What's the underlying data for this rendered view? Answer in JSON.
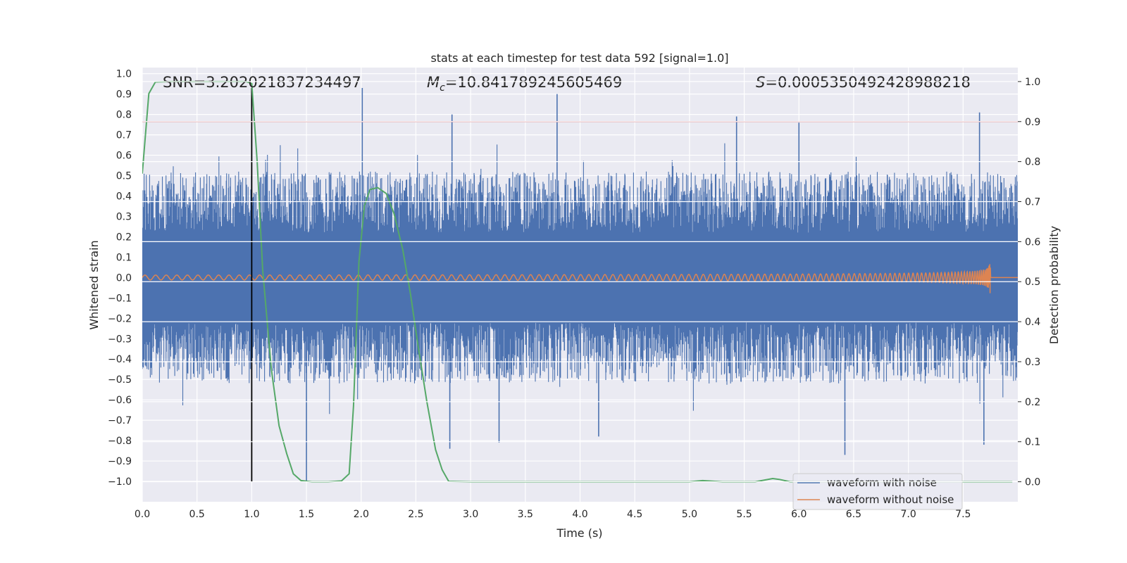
{
  "chart_data": {
    "type": "line",
    "title": "stats at each timestep for test data 592 [signal=1.0]",
    "xlabel": "Time (s)",
    "ylabel": "Whitened strain",
    "y2label": "Detection probability",
    "xlim": [
      0.0,
      8.0
    ],
    "ylim": [
      -1.1,
      1.03
    ],
    "y2lim": [
      -0.05,
      1.035
    ],
    "xticks": [
      0.0,
      0.5,
      1.0,
      1.5,
      2.0,
      2.5,
      3.0,
      3.5,
      4.0,
      4.5,
      5.0,
      5.5,
      6.0,
      6.5,
      7.0,
      7.5
    ],
    "xtick_labels": [
      "0.0",
      "0.5",
      "1.0",
      "1.5",
      "2.0",
      "2.5",
      "3.0",
      "3.5",
      "4.0",
      "4.5",
      "5.0",
      "5.5",
      "6.0",
      "6.5",
      "7.0",
      "7.5"
    ],
    "yticks": [
      1.0,
      0.9,
      0.8,
      0.7,
      0.6,
      0.5,
      0.4,
      0.3,
      0.2,
      0.1,
      0.0,
      -0.1,
      -0.2,
      -0.3,
      -0.4,
      -0.5,
      -0.6,
      -0.7,
      -0.8,
      -0.9,
      -1.0
    ],
    "ytick_labels": [
      "1.0",
      "0.9",
      "0.8",
      "0.7",
      "0.6",
      "0.5",
      "0.4",
      "0.3",
      "0.2",
      "0.1",
      "0.0",
      "−0.1",
      "−0.2",
      "−0.3",
      "−0.4",
      "−0.5",
      "−0.6",
      "−0.7",
      "−0.8",
      "−0.9",
      "−1.0"
    ],
    "y2ticks": [
      1.0,
      0.9,
      0.8,
      0.7,
      0.6,
      0.5,
      0.4,
      0.3,
      0.2,
      0.1,
      0.0
    ],
    "y2tick_labels": [
      "1.0",
      "0.9",
      "0.8",
      "0.7",
      "0.6",
      "0.5",
      "0.4",
      "0.3",
      "0.2",
      "0.1",
      "0.0"
    ],
    "annotations": {
      "snr": "SNR=3.202021837234497",
      "mc_prefix": "M",
      "mc_sub": "c",
      "mc_value": "=10.841789245605469",
      "s_prefix": "S",
      "s_value": "=0.0005350492428988218"
    },
    "legend": {
      "location": "lower right",
      "entries": [
        "waveform with noise",
        "waveform without noise"
      ]
    },
    "colors": {
      "background": "#eaeaf2",
      "grid": "#ffffff",
      "noisy": "#4c72b0",
      "clean": "#dd8452",
      "probability": "#55a868",
      "threshold": "#c44e52",
      "marker": "#000000"
    },
    "series": [
      {
        "name": "waveform with noise",
        "kind": "noise-band",
        "peak_times": [
          2.01,
          3.79,
          7.65,
          2.83,
          5.43,
          6.0
        ],
        "peak_values": [
          0.93,
          0.9,
          0.81,
          0.8,
          0.79,
          0.76
        ],
        "trough_times": [
          1.5,
          2.81,
          3.26,
          4.17,
          6.42,
          7.69
        ],
        "trough_values": [
          -1.0,
          -0.84,
          -0.81,
          -0.78,
          -0.87,
          -0.82
        ]
      },
      {
        "name": "waveform without noise",
        "kind": "chirp",
        "merger_time": 7.75,
        "peak_amplitude": 0.1
      },
      {
        "name": "detection probability",
        "axis": "y2",
        "x": [
          0.0,
          0.06,
          0.12,
          0.25,
          0.5,
          0.75,
          0.95,
          1.0,
          1.05,
          1.1,
          1.18,
          1.25,
          1.32,
          1.38,
          1.45,
          1.55,
          1.7,
          1.82,
          1.89,
          1.93,
          1.98,
          2.03,
          2.08,
          2.15,
          2.23,
          2.3,
          2.38,
          2.45,
          2.52,
          2.6,
          2.68,
          2.74,
          2.8,
          3.0,
          4.0,
          5.0,
          5.12,
          5.3,
          5.6,
          5.76,
          5.82,
          5.92,
          6.0,
          6.5,
          7.0,
          7.5,
          7.95
        ],
        "y": [
          0.77,
          0.97,
          0.999,
          1.0,
          1.0,
          1.0,
          1.0,
          0.995,
          0.8,
          0.53,
          0.28,
          0.14,
          0.07,
          0.02,
          0.003,
          0.0,
          0.0,
          0.002,
          0.02,
          0.19,
          0.55,
          0.69,
          0.73,
          0.735,
          0.72,
          0.67,
          0.58,
          0.47,
          0.34,
          0.2,
          0.08,
          0.03,
          0.001,
          0.0,
          0.0,
          0.0,
          0.003,
          0.0,
          0.0,
          0.008,
          0.006,
          0.0,
          0.0,
          0.0,
          0.0,
          0.0,
          0.0
        ]
      },
      {
        "name": "threshold",
        "axis": "y2",
        "kind": "hline",
        "value": 0.9
      },
      {
        "name": "marker",
        "kind": "vline",
        "x": 1.0,
        "ymin": -1.0,
        "ymax": 0.93
      }
    ]
  }
}
